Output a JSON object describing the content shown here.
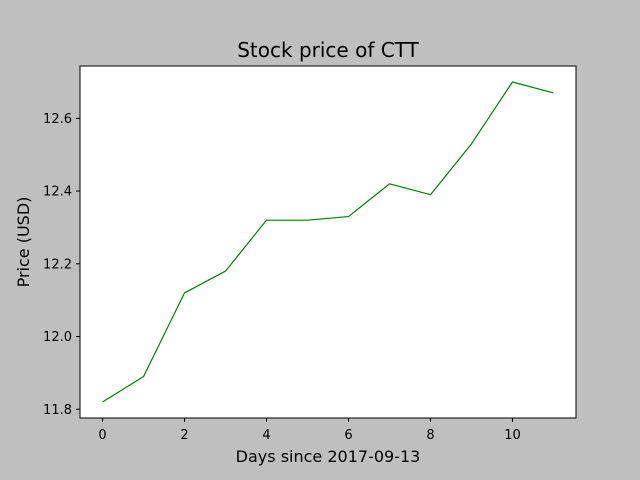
{
  "chart_data": {
    "type": "line",
    "title": "Stock price of CTT",
    "xlabel": "Days since 2017-09-13",
    "ylabel": "Price (USD)",
    "x": [
      0,
      1,
      2,
      3,
      4,
      5,
      6,
      7,
      8,
      9,
      10,
      11
    ],
    "series": [
      {
        "values": [
          11.82,
          11.89,
          12.12,
          12.18,
          12.32,
          12.32,
          12.33,
          12.42,
          12.39,
          12.53,
          12.7,
          12.67
        ],
        "color": "#008000"
      }
    ],
    "xlim": [
      -0.55,
      11.55
    ],
    "ylim": [
      11.776,
      12.744
    ],
    "xticks": [
      "0",
      "2",
      "4",
      "6",
      "8",
      "10"
    ],
    "yticks": [
      "11.8",
      "12.0",
      "12.2",
      "12.4",
      "12.6"
    ],
    "grid": false,
    "background": "#bfbfbf",
    "plot_background": "#ffffff"
  }
}
